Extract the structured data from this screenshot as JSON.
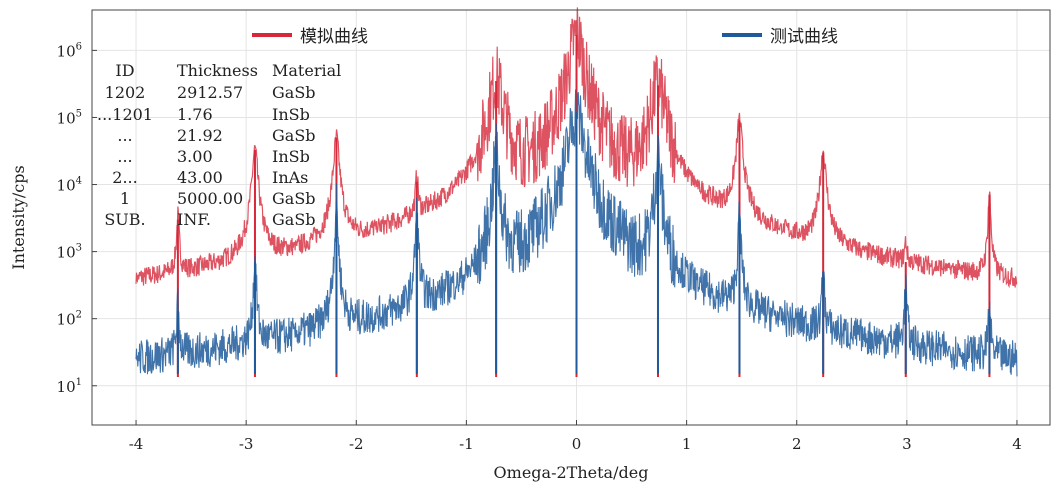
{
  "chart_data": {
    "type": "line",
    "title": "",
    "xlabel": "Omega-2Theta/deg",
    "ylabel": "Intensity/cps",
    "xlim": [
      -4.4,
      4.3
    ],
    "ylog": true,
    "ylim": [
      2.6,
      4000000
    ],
    "x_ticks": [
      -4,
      -3,
      -2,
      -1,
      0,
      1,
      2,
      3,
      4
    ],
    "x_tick_labels": [
      "-4",
      "-3",
      "-2",
      "-1",
      "0",
      "1",
      "2",
      "3",
      "4"
    ],
    "y_ticks": [
      10,
      100,
      1000,
      10000,
      100000,
      1000000
    ],
    "y_tick_labels": [
      {
        "base": "10",
        "exp": "1"
      },
      {
        "base": "10",
        "exp": "2"
      },
      {
        "base": "10",
        "exp": "3"
      },
      {
        "base": "10",
        "exp": "4"
      },
      {
        "base": "10",
        "exp": "5"
      },
      {
        "base": "10",
        "exp": "6"
      }
    ],
    "grid": true,
    "legend_placement": "top",
    "series": [
      {
        "name": "模拟曲线",
        "color": "#d62839",
        "baseline": 4.5,
        "peaks": [
          {
            "x": -3.62,
            "y": 3000
          },
          {
            "x": -2.92,
            "y": 33000
          },
          {
            "x": -2.18,
            "y": 50000
          },
          {
            "x": -1.45,
            "y": 11000
          },
          {
            "x": -0.73,
            "y": 350000
          },
          {
            "x": 0.0,
            "y": 1700000
          },
          {
            "x": 0.74,
            "y": 300000
          },
          {
            "x": 1.48,
            "y": 90000
          },
          {
            "x": 2.24,
            "y": 30000
          },
          {
            "x": 2.99,
            "y": 700
          },
          {
            "x": 3.75,
            "y": 7000
          }
        ]
      },
      {
        "name": "测试曲线",
        "color": "#1f5a9a",
        "baseline": 5,
        "peaks": [
          {
            "x": -3.62,
            "y": 130
          },
          {
            "x": -2.92,
            "y": 700
          },
          {
            "x": -2.18,
            "y": 5500
          },
          {
            "x": -1.45,
            "y": 3800
          },
          {
            "x": -0.73,
            "y": 30000
          },
          {
            "x": 0.0,
            "y": 120000
          },
          {
            "x": 0.74,
            "y": 25000
          },
          {
            "x": 1.48,
            "y": 3500
          },
          {
            "x": 2.24,
            "y": 400
          },
          {
            "x": 2.99,
            "y": 250
          },
          {
            "x": 3.75,
            "y": 110
          }
        ]
      }
    ]
  },
  "legend": [
    {
      "label": "模拟曲线",
      "color": "#d62839"
    },
    {
      "label": "测试曲线",
      "color": "#1f5a9a"
    }
  ],
  "layer_table": {
    "headers": [
      "ID",
      "Thickness",
      "Material"
    ],
    "rows": [
      [
        "1202",
        "2912.57",
        "GaSb"
      ],
      [
        "...1201",
        "1.76",
        "InSb"
      ],
      [
        "...",
        "21.92",
        "GaSb"
      ],
      [
        "...",
        "3.00",
        "InSb"
      ],
      [
        "2...",
        "43.00",
        "InAs"
      ],
      [
        "1",
        "5000.00",
        "GaSb"
      ],
      [
        "SUB.",
        "INF.",
        "GaSb"
      ]
    ]
  }
}
